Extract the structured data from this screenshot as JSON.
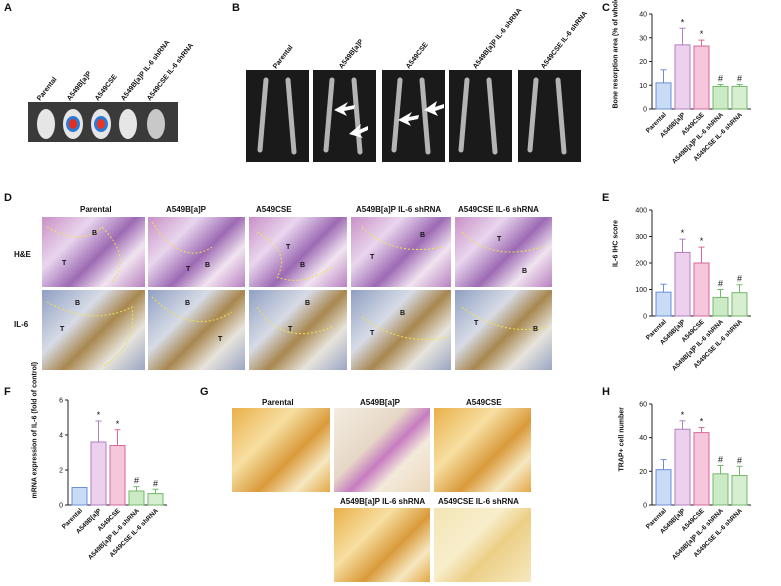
{
  "panels": {
    "A": {
      "letter": "A",
      "labels": [
        "Parental",
        "A549B[a]P",
        "A549CSE",
        "A549B[a]P IL-6 shRNA",
        "A549CSE IL-6 shRNA"
      ]
    },
    "B": {
      "letter": "B",
      "labels": [
        "Parental",
        "A549B[a]P",
        "A549CSE",
        "A549B[a]P IL-6 shRNA",
        "A549CSE IL-6 shRNA"
      ]
    },
    "D": {
      "letter": "D",
      "columns": [
        "Parental",
        "A549B[a]P",
        "A549CSE",
        "A549B[a]P IL-6 shRNA",
        "A549CSE IL-6 shRNA"
      ],
      "rows": [
        "H&E",
        "IL-6"
      ],
      "tags": [
        "B",
        "T"
      ]
    },
    "G": {
      "letter": "G",
      "labels": [
        "Parental",
        "A549B[a]P",
        "A549CSE",
        "A549B[a]P IL-6 shRNA",
        "A549CSE IL-6 shRNA"
      ]
    }
  },
  "chart_data": [
    {
      "panel": "C",
      "type": "bar",
      "ylabel": "Bone resorption area (% of whole tibia)",
      "ylim": [
        0,
        40
      ],
      "yticks": [
        0,
        10,
        20,
        30,
        40
      ],
      "categories": [
        "Parental",
        "A549B[a]P",
        "A549CSE",
        "A549B[a]P IL-6 shRNA",
        "A549CSE IL-6 shRNA"
      ],
      "values": [
        11,
        27,
        26.5,
        9.5,
        9.5
      ],
      "errors": [
        5.5,
        7,
        2.5,
        0.8,
        0.8
      ],
      "significance": [
        "",
        "*",
        "*",
        "#",
        "#"
      ],
      "colors": [
        "#c9dcf5",
        "#ecd0ee",
        "#f6c6dc",
        "#cdeac7",
        "#d7eed1"
      ],
      "edges": [
        "#6b8fd6",
        "#b07fbf",
        "#d8679a",
        "#72b96a",
        "#72b96a"
      ]
    },
    {
      "panel": "E",
      "type": "bar",
      "ylabel": "IL-6 IHC score",
      "ylim": [
        0,
        400
      ],
      "yticks": [
        0,
        100,
        200,
        300,
        400
      ],
      "categories": [
        "Parental",
        "A549B[a]P",
        "A549CSE",
        "A549B[a]P IL-6 shRNA",
        "A549CSE IL-6 shRNA"
      ],
      "values": [
        90,
        240,
        200,
        70,
        88
      ],
      "errors": [
        30,
        50,
        60,
        30,
        30
      ],
      "significance": [
        "",
        "*",
        "*",
        "#",
        "#"
      ],
      "colors": [
        "#c9dcf5",
        "#ecd0ee",
        "#f6c6dc",
        "#cdeac7",
        "#d7eed1"
      ],
      "edges": [
        "#6b8fd6",
        "#b07fbf",
        "#d8679a",
        "#72b96a",
        "#72b96a"
      ]
    },
    {
      "panel": "F",
      "type": "bar",
      "ylabel": "mRNA expression of IL-6 (fold of control)",
      "ylim": [
        0,
        6
      ],
      "yticks": [
        0,
        2,
        4,
        6
      ],
      "categories": [
        "Parental",
        "A549B[a]P",
        "A549CSE",
        "A549B[a]P IL-6 shRNA",
        "A549CSE IL-6 shRNA"
      ],
      "values": [
        1,
        3.6,
        3.4,
        0.8,
        0.65
      ],
      "errors": [
        0,
        1.2,
        0.9,
        0.25,
        0.25
      ],
      "significance": [
        "",
        "*",
        "*",
        "#",
        "#"
      ],
      "colors": [
        "#c9dcf5",
        "#ecd0ee",
        "#f6c6dc",
        "#cdeac7",
        "#d7eed1"
      ],
      "edges": [
        "#6b8fd6",
        "#b07fbf",
        "#d8679a",
        "#72b96a",
        "#72b96a"
      ]
    },
    {
      "panel": "H",
      "type": "bar",
      "ylabel": "TRAP+ cell number",
      "ylim": [
        0,
        60
      ],
      "yticks": [
        0,
        20,
        40,
        60
      ],
      "categories": [
        "Parental",
        "A549B[a]P",
        "A549CSE",
        "A549B[a]P IL-6 shRNA",
        "A549CSE IL-6 shRNA"
      ],
      "values": [
        21,
        45,
        43,
        18.5,
        17.5
      ],
      "errors": [
        6,
        5,
        3,
        5,
        5.5
      ],
      "significance": [
        "",
        "*",
        "*",
        "#",
        "#"
      ],
      "colors": [
        "#c9dcf5",
        "#ecd0ee",
        "#f6c6dc",
        "#cdeac7",
        "#d7eed1"
      ],
      "edges": [
        "#6b8fd6",
        "#b07fbf",
        "#d8679a",
        "#72b96a",
        "#72b96a"
      ]
    }
  ]
}
